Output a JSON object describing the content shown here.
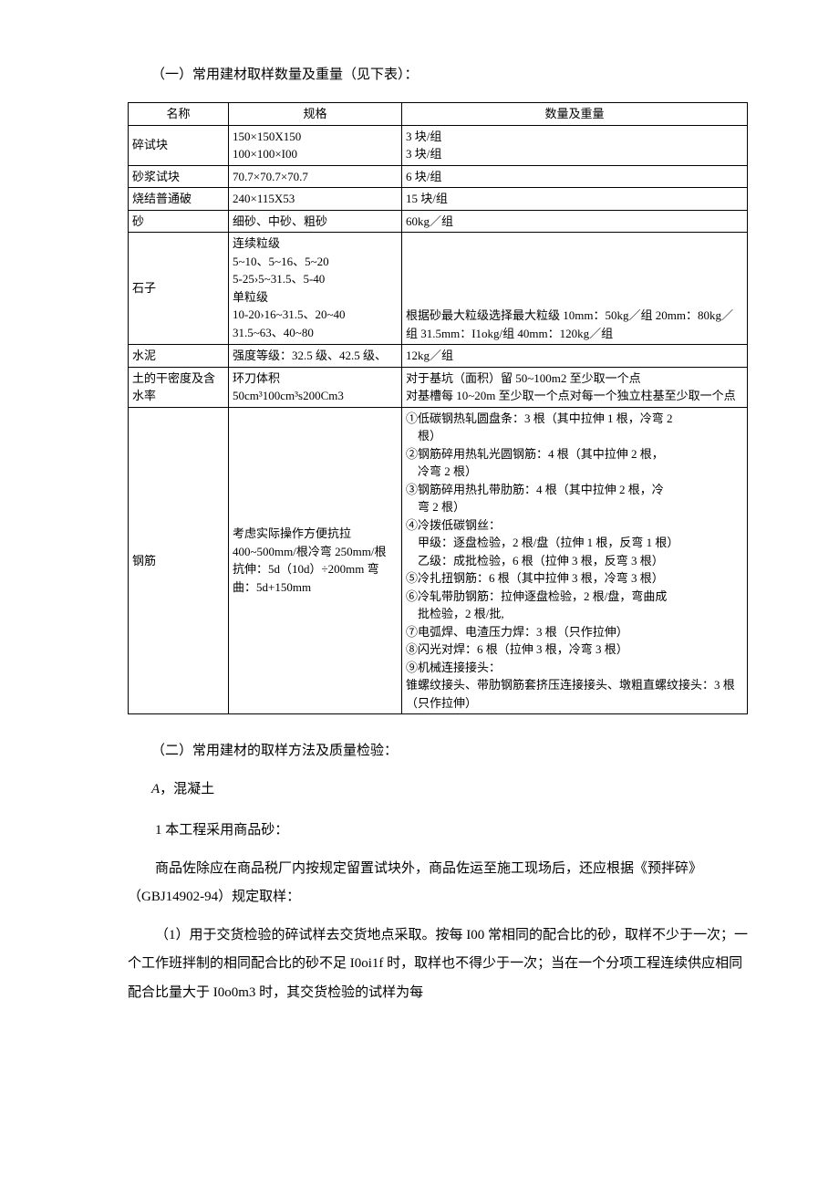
{
  "heading1": "（一）常用建材取样数量及重量（见下表）：",
  "table": {
    "headers": {
      "name": "名称",
      "spec": "规格",
      "qty": "数量及重量"
    },
    "rows": [
      {
        "name": "碎试块",
        "spec": "150×150X150\n100×100×I00",
        "qty": "3 块/组\n3 块/组"
      },
      {
        "name": "砂浆试块",
        "spec": "70.7×70.7×70.7",
        "qty": "6 块/组"
      },
      {
        "name": "烧结普通破",
        "spec": "240×115X53",
        "qty": "15 块/组"
      },
      {
        "name": "砂",
        "spec": "细砂、中砂、粗砂",
        "qty": "60kg／组"
      },
      {
        "name": "石子",
        "spec": "连续粒级\n5~10、5~16、5~20\n5-25›5~31.5、5-40\n单粒级\n10-20›16~31.5、20~40\n31.5~63、40~80",
        "qty": "根据砂最大粒级选择最大粒级 10mm：50kg／组 20mm：80kg／组 31.5mm：I1okg/组 40mm：120kg／组",
        "qty_valign": "bottom",
        "spec_overflow": true
      },
      {
        "name": "水泥",
        "spec": "强度等级：32.5 级、42.5 级、",
        "qty": "12kg／组"
      },
      {
        "name": "土的干密度及含水率",
        "spec": "环刀体积\n50cm³100cm³s200Cm3",
        "qty": "对于基坑（面积）留 50~100m2 至少取一个点\n对基槽每 10~20m 至少取一个点对每一个独立柱基至少取一个点"
      },
      {
        "name": "钢筋",
        "spec": "考虑实际操作方便抗拉 400~500mm/根冷弯 250mm/根抗伸：5d（10d）÷200mm 弯曲：5d+150mm",
        "spec_valign": "middle",
        "qty_lines": [
          "①低碳钢热轧圆盘条：3 根（其中拉伸 1 根，冷弯 2",
          "　根）",
          "②钢筋碎用热轧光圆钢筋：4 根（其中拉伸 2 根，",
          "　冷弯 2 根）",
          "③钢筋碎用热扎带肋筋：4 根（其中拉伸 2 根，冷",
          "　弯 2 根）",
          "④冷拨低碳钢丝：",
          "　甲级：逐盘检验，2 根/盘（拉伸 1 根，反弯 1 根）",
          "　乙级：成批检验，6 根（拉伸 3 根，反弯 3 根）",
          "⑤冷扎扭钢筋：6 根（其中拉伸 3 根，冷弯 3 根）",
          "⑥冷轧带肋钢筋：拉伸逐盘检验，2 根/盘，弯曲成",
          "　批检验，2 根/批,",
          "⑦电弧焊、电渣压力焊：3 根（只作拉伸）",
          "⑧闪光对焊：6 根（拉伸 3 根，冷弯 3 根）",
          "⑨机械连接接头：",
          "锥螺纹接头、带肋钢筋套挤压连接接头、墩粗直螺纹接头：3 根（只作拉伸）"
        ]
      }
    ]
  },
  "heading2": "（二）常用建材的取样方法及质量检验：",
  "sectionA_label_prefix": "A",
  "sectionA_label": "，混凝土",
  "para1": "1 本工程采用商品砂：",
  "para2": "商品佐除应在商品税厂内按规定留置试块外，商品佐运至施工现场后，还应根据《预拌碎》（GBJ14902-94）规定取样：",
  "para3": "（1）用于交货检验的碎试样去交货地点采取。按每 I00 常相同的配合比的砂，取样不少于一次；一个工作班拌制的相同配合比的砂不足 I0oi1f 时，取样也不得少于一次；当在一个分项工程连续供应相同配合比量大于 I0o0m3 时，其交货检验的试样为每"
}
